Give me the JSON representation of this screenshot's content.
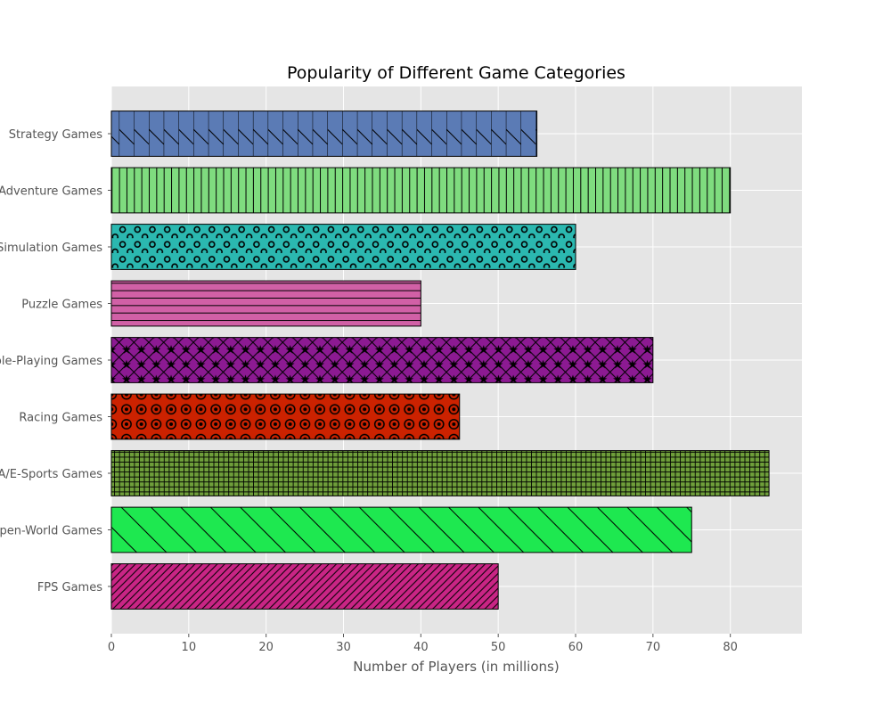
{
  "chart_data": {
    "type": "bar",
    "orientation": "horizontal",
    "title": "Popularity of Different Game Categories",
    "xlabel": "Number of Players (in millions)",
    "ylabel": "",
    "xlim": [
      0,
      89.25
    ],
    "xticks": [
      0,
      10,
      20,
      30,
      40,
      50,
      60,
      70,
      80
    ],
    "grid": true,
    "categories": [
      "Strategy Games",
      "Adventure Games",
      "Simulation Games",
      "Puzzle Games",
      "Role-Playing Games",
      "Racing Games",
      "MOBA/E-Sports Games",
      "Open-World Games",
      "FPS Games"
    ],
    "values": [
      55,
      80,
      60,
      40,
      70,
      45,
      85,
      75,
      50
    ],
    "colors": [
      "#5b7bb5",
      "#7fdc7f",
      "#2bb8b0",
      "#d160a6",
      "#8c1a92",
      "#cc2200",
      "#6e9e3a",
      "#1ee850",
      "#c92585"
    ],
    "hatches": [
      "backslash",
      "vertical",
      "small-circles",
      "horizontal",
      "star-diamond",
      "ring-dots",
      "grid",
      "wide-backslash",
      "slash"
    ],
    "background": "#e5e5e5"
  }
}
